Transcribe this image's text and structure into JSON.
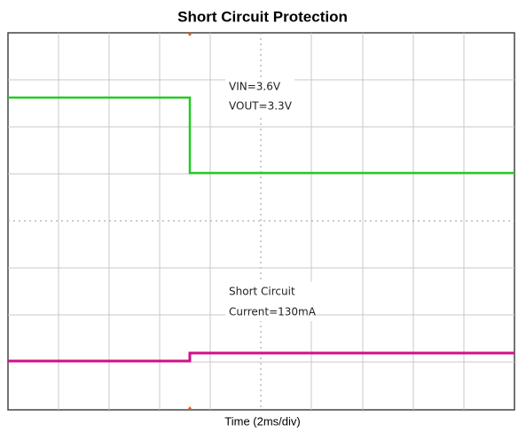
{
  "title": "Short Circuit Protection",
  "annotations": {
    "voltage": [
      "VIN=3.6V",
      "VOUT=3.3V"
    ],
    "current": [
      "Short Circuit",
      "Current=130mA"
    ]
  },
  "x_label": "Time (2ms/div)"
}
